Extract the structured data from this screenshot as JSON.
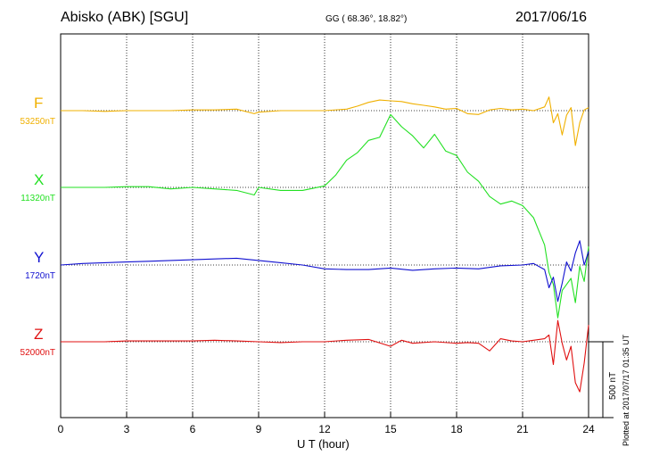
{
  "header": {
    "station": "Abisko (ABK)  [SGU]",
    "coords": "GG ( 68.36°,  18.82°)",
    "date": "2017/06/16"
  },
  "footer": {
    "plotted": "Plotted at 2017/07/17 01:35 UT"
  },
  "chart_data": {
    "type": "line",
    "xlabel": "U T (hour)",
    "x_range": [
      0,
      24
    ],
    "x_ticks": [
      "0",
      "3",
      "6",
      "9",
      "12",
      "15",
      "18",
      "21",
      "24"
    ],
    "grid": true,
    "scale_bar": {
      "label": "500 nT",
      "value_nT": 500
    },
    "series": [
      {
        "name": "F",
        "baseline_label": "53250nT",
        "color": "#f0b000",
        "x": [
          0,
          1,
          2,
          3,
          4,
          5,
          6,
          7,
          8,
          8.8,
          9,
          10,
          11,
          12,
          13,
          13.5,
          14,
          14.5,
          15,
          15.5,
          16,
          16.5,
          17,
          17.5,
          18,
          18.5,
          19,
          19.5,
          20,
          20.5,
          21,
          21.5,
          22,
          22.2,
          22.4,
          22.6,
          22.8,
          23,
          23.2,
          23.4,
          23.6,
          23.8,
          24
        ],
        "y": [
          0,
          0,
          -5,
          0,
          0,
          0,
          5,
          5,
          10,
          -20,
          -10,
          0,
          0,
          0,
          10,
          30,
          55,
          70,
          65,
          60,
          45,
          35,
          25,
          10,
          15,
          -20,
          -25,
          5,
          15,
          5,
          10,
          0,
          25,
          90,
          -80,
          -20,
          -160,
          -30,
          20,
          -230,
          -80,
          5,
          20
        ]
      },
      {
        "name": "X",
        "baseline_label": "11320nT",
        "color": "#22e022",
        "x": [
          0,
          1,
          2,
          3,
          4,
          5,
          6,
          7,
          8,
          8.8,
          9,
          10,
          11,
          12,
          12.5,
          13,
          13.5,
          14,
          14.5,
          15,
          15.5,
          16,
          16.5,
          17,
          17.5,
          18,
          18.5,
          19,
          19.5,
          20,
          20.5,
          21,
          21.5,
          22,
          22.2,
          22.4,
          22.6,
          22.8,
          23,
          23.2,
          23.4,
          23.6,
          23.8,
          24
        ],
        "y": [
          0,
          0,
          0,
          5,
          5,
          -10,
          0,
          -10,
          -20,
          -50,
          0,
          -20,
          -20,
          10,
          80,
          180,
          230,
          310,
          330,
          480,
          400,
          340,
          260,
          350,
          240,
          210,
          100,
          40,
          -60,
          -110,
          -90,
          -120,
          -200,
          -380,
          -560,
          -640,
          -860,
          -680,
          -640,
          -600,
          -760,
          -520,
          -620,
          -390
        ]
      },
      {
        "name": "Y",
        "baseline_label": "1720nT",
        "color": "#1010d0",
        "x": [
          0,
          1,
          2,
          3,
          4,
          5,
          6,
          7,
          8,
          9,
          10,
          11,
          12,
          13,
          14,
          15,
          16,
          17,
          18,
          19,
          20,
          21,
          21.5,
          22,
          22.2,
          22.4,
          22.6,
          22.8,
          23,
          23.2,
          23.4,
          23.6,
          23.8,
          24
        ],
        "y": [
          0,
          10,
          15,
          20,
          25,
          30,
          35,
          40,
          45,
          30,
          15,
          0,
          -25,
          -30,
          -30,
          -20,
          -35,
          -25,
          -20,
          -25,
          -5,
          0,
          10,
          -30,
          -150,
          -80,
          -240,
          -120,
          20,
          -40,
          80,
          160,
          0,
          90
        ]
      },
      {
        "name": "Z",
        "baseline_label": "52000nT",
        "color": "#e01010",
        "x": [
          0,
          1,
          2,
          3,
          4,
          5,
          6,
          7,
          8,
          9,
          10,
          11,
          12,
          13,
          14,
          15,
          15.5,
          16,
          17,
          18,
          18.5,
          19,
          19.5,
          20,
          20.5,
          21,
          21.5,
          22,
          22.2,
          22.4,
          22.6,
          22.8,
          23,
          23.2,
          23.4,
          23.6,
          23.8,
          24
        ],
        "y": [
          0,
          0,
          0,
          5,
          5,
          5,
          5,
          10,
          5,
          0,
          -5,
          0,
          0,
          10,
          15,
          -30,
          10,
          -10,
          0,
          -10,
          -5,
          -10,
          -60,
          20,
          5,
          0,
          10,
          20,
          45,
          -150,
          140,
          -10,
          -120,
          -30,
          -270,
          -330,
          -140,
          110
        ]
      }
    ]
  }
}
